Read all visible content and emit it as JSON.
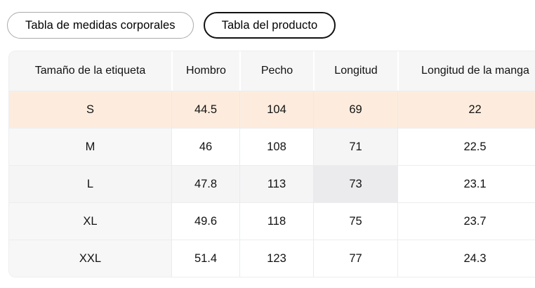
{
  "tabs": [
    {
      "label": "Tabla de medidas corporales",
      "selected": false
    },
    {
      "label": "Tabla del producto",
      "selected": true
    }
  ],
  "table": {
    "columns": [
      "Tamaño de la etiqueta",
      "Hombro",
      "Pecho",
      "Longitud",
      "Longitud de la manga"
    ],
    "rows": [
      {
        "size": "S",
        "values": [
          "44.5",
          "104",
          "69",
          "22"
        ]
      },
      {
        "size": "M",
        "values": [
          "46",
          "108",
          "71",
          "22.5"
        ]
      },
      {
        "size": "L",
        "values": [
          "47.8",
          "113",
          "73",
          "23.1"
        ]
      },
      {
        "size": "XL",
        "values": [
          "49.6",
          "118",
          "75",
          "23.7"
        ]
      },
      {
        "size": "XXL",
        "values": [
          "51.4",
          "123",
          "77",
          "24.3"
        ]
      }
    ]
  },
  "state": {
    "highlighted_size_row": "S",
    "hovered_cell": {
      "row": "L",
      "column": "Longitud"
    }
  },
  "colors": {
    "size_row_highlight": "#fdecdd",
    "hovered_cell": "#ebebed",
    "hover_trail": "#f5f5f6",
    "header_bg": "#f6f6f7",
    "first_col_bg": "#f7f7f8",
    "selected_tab_border": "#111111",
    "unselected_tab_border": "#ababaf"
  }
}
